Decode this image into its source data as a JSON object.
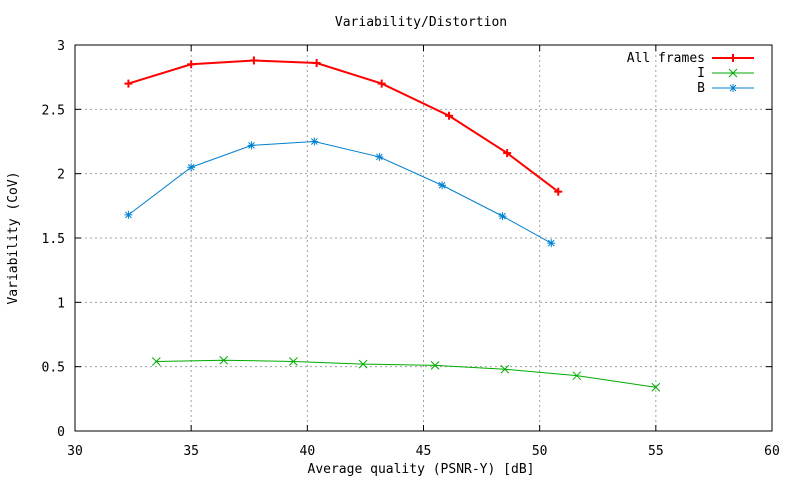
{
  "chart_data": {
    "type": "line",
    "title": "Variability/Distortion",
    "xlabel": "Average quality (PSNR-Y) [dB]",
    "ylabel": "Variability (CoV)",
    "xlim": [
      30,
      60
    ],
    "ylim": [
      0,
      3
    ],
    "x_ticks": [
      "30",
      "35",
      "40",
      "45",
      "50",
      "55",
      "60"
    ],
    "y_ticks": [
      "0",
      "0.5",
      "1",
      "1.5",
      "2",
      "2.5",
      "3"
    ],
    "grid": true,
    "legend_position": "top-right",
    "series": [
      {
        "name": "All frames",
        "color": "#ff0000",
        "marker": "plus",
        "x": [
          32.3,
          35.0,
          37.7,
          40.4,
          43.2,
          46.1,
          48.6,
          50.8
        ],
        "y": [
          2.7,
          2.85,
          2.88,
          2.86,
          2.7,
          2.45,
          2.16,
          1.86
        ]
      },
      {
        "name": "I",
        "color": "#00aa00",
        "marker": "cross",
        "x": [
          33.5,
          36.4,
          39.4,
          42.4,
          45.5,
          48.5,
          51.6,
          55.0
        ],
        "y": [
          0.54,
          0.55,
          0.54,
          0.52,
          0.51,
          0.48,
          0.43,
          0.34
        ]
      },
      {
        "name": "B",
        "color": "#0080d0",
        "marker": "star",
        "x": [
          32.3,
          35.0,
          37.6,
          40.3,
          43.1,
          45.8,
          48.4,
          50.5
        ],
        "y": [
          1.68,
          2.05,
          2.22,
          2.25,
          2.13,
          1.91,
          1.67,
          1.46
        ]
      }
    ]
  }
}
